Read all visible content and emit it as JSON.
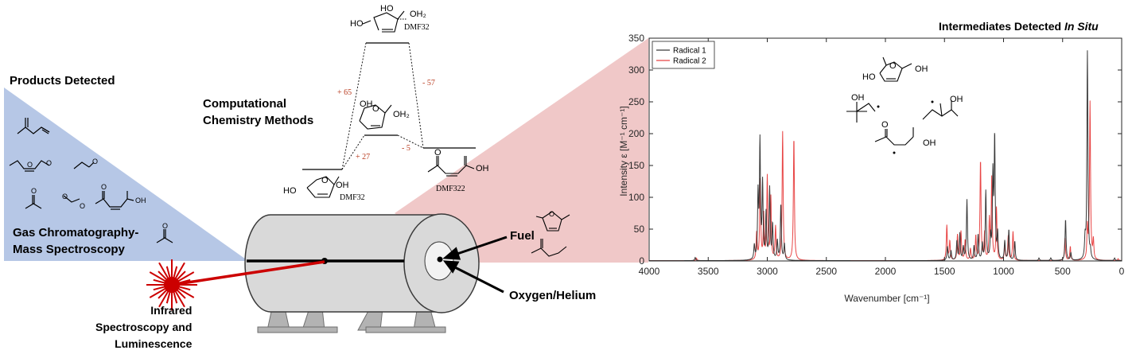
{
  "products": {
    "title": "Products Detected",
    "gcms": "Gas Chromatography-\nMass Spectroscopy",
    "oh_label": "OH"
  },
  "computational": {
    "title": "Computational\nChemistry Methods",
    "energies": [
      "+ 65",
      "- 57",
      "+ 27",
      "- 5"
    ],
    "top_species": "DMF32",
    "reactant": "DMF32",
    "product": "DMF322",
    "labels": {
      "ho": "HO",
      "oh": "OH",
      "oh2": "OH₂",
      "o": "O"
    }
  },
  "reactor": {
    "fuel": "Fuel",
    "oxidizer": "Oxygen/Helium",
    "ir": "Infrared\nSpectroscopy and\nLuminescence"
  },
  "intermediates": {
    "title_prefix": "Intermediates Detected ",
    "title_italic": "In Situ",
    "labels": {
      "ho": "HO",
      "oh": "OH",
      "o": "O"
    }
  },
  "chart_data": {
    "type": "line",
    "xlabel": "Wavenumber [cm⁻¹]",
    "ylabel": "Intensity ε [M⁻¹ cm⁻¹]",
    "xlim": [
      4000,
      0
    ],
    "ylim": [
      0,
      350
    ],
    "xticks": [
      4000,
      3500,
      3000,
      2500,
      2000,
      1500,
      1000,
      500,
      0
    ],
    "yticks": [
      0,
      50,
      100,
      150,
      200,
      250,
      300,
      350
    ],
    "legend_position": "top-left",
    "series": [
      {
        "name": "Radical 1",
        "color": "#3a3a3a",
        "peaks": [
          [
            3610,
            5
          ],
          [
            3110,
            22
          ],
          [
            3078,
            100
          ],
          [
            3062,
            182
          ],
          [
            3040,
            118
          ],
          [
            3010,
            72
          ],
          [
            2980,
            112
          ],
          [
            2955,
            55
          ],
          [
            2915,
            30
          ],
          [
            2885,
            88
          ],
          [
            2855,
            25
          ],
          [
            1475,
            22
          ],
          [
            1445,
            15
          ],
          [
            1395,
            30
          ],
          [
            1370,
            42
          ],
          [
            1340,
            20
          ],
          [
            1310,
            95
          ],
          [
            1250,
            22
          ],
          [
            1215,
            40
          ],
          [
            1180,
            25
          ],
          [
            1150,
            108
          ],
          [
            1110,
            35
          ],
          [
            1090,
            130
          ],
          [
            1075,
            190
          ],
          [
            1050,
            40
          ],
          [
            990,
            30
          ],
          [
            955,
            48
          ],
          [
            905,
            30
          ],
          [
            700,
            4
          ],
          [
            600,
            4
          ],
          [
            475,
            65
          ],
          [
            430,
            12
          ],
          [
            310,
            30
          ],
          [
            290,
            328
          ],
          [
            265,
            12
          ],
          [
            60,
            4
          ]
        ]
      },
      {
        "name": "Radical 2",
        "color": "#e84545",
        "peaks": [
          [
            3600,
            4
          ],
          [
            3090,
            42
          ],
          [
            3060,
            125
          ],
          [
            3030,
            70
          ],
          [
            3000,
            130
          ],
          [
            2970,
            98
          ],
          [
            2930,
            52
          ],
          [
            2870,
            202
          ],
          [
            2775,
            194
          ],
          [
            1480,
            55
          ],
          [
            1455,
            30
          ],
          [
            1390,
            40
          ],
          [
            1360,
            45
          ],
          [
            1325,
            32
          ],
          [
            1280,
            18
          ],
          [
            1235,
            38
          ],
          [
            1195,
            158
          ],
          [
            1160,
            42
          ],
          [
            1120,
            62
          ],
          [
            1100,
            128
          ],
          [
            1060,
            82
          ],
          [
            990,
            22
          ],
          [
            960,
            38
          ],
          [
            920,
            45
          ],
          [
            480,
            35
          ],
          [
            435,
            22
          ],
          [
            290,
            50
          ],
          [
            268,
            248
          ],
          [
            240,
            30
          ],
          [
            30,
            3
          ]
        ]
      }
    ]
  },
  "colors": {
    "products_panel": "#b6c7e6",
    "intermediates_panel": "#f0c8c8",
    "laser": "#cc0000",
    "cylinder": "#d9d9d9",
    "energy_text": "#b83a1e"
  }
}
